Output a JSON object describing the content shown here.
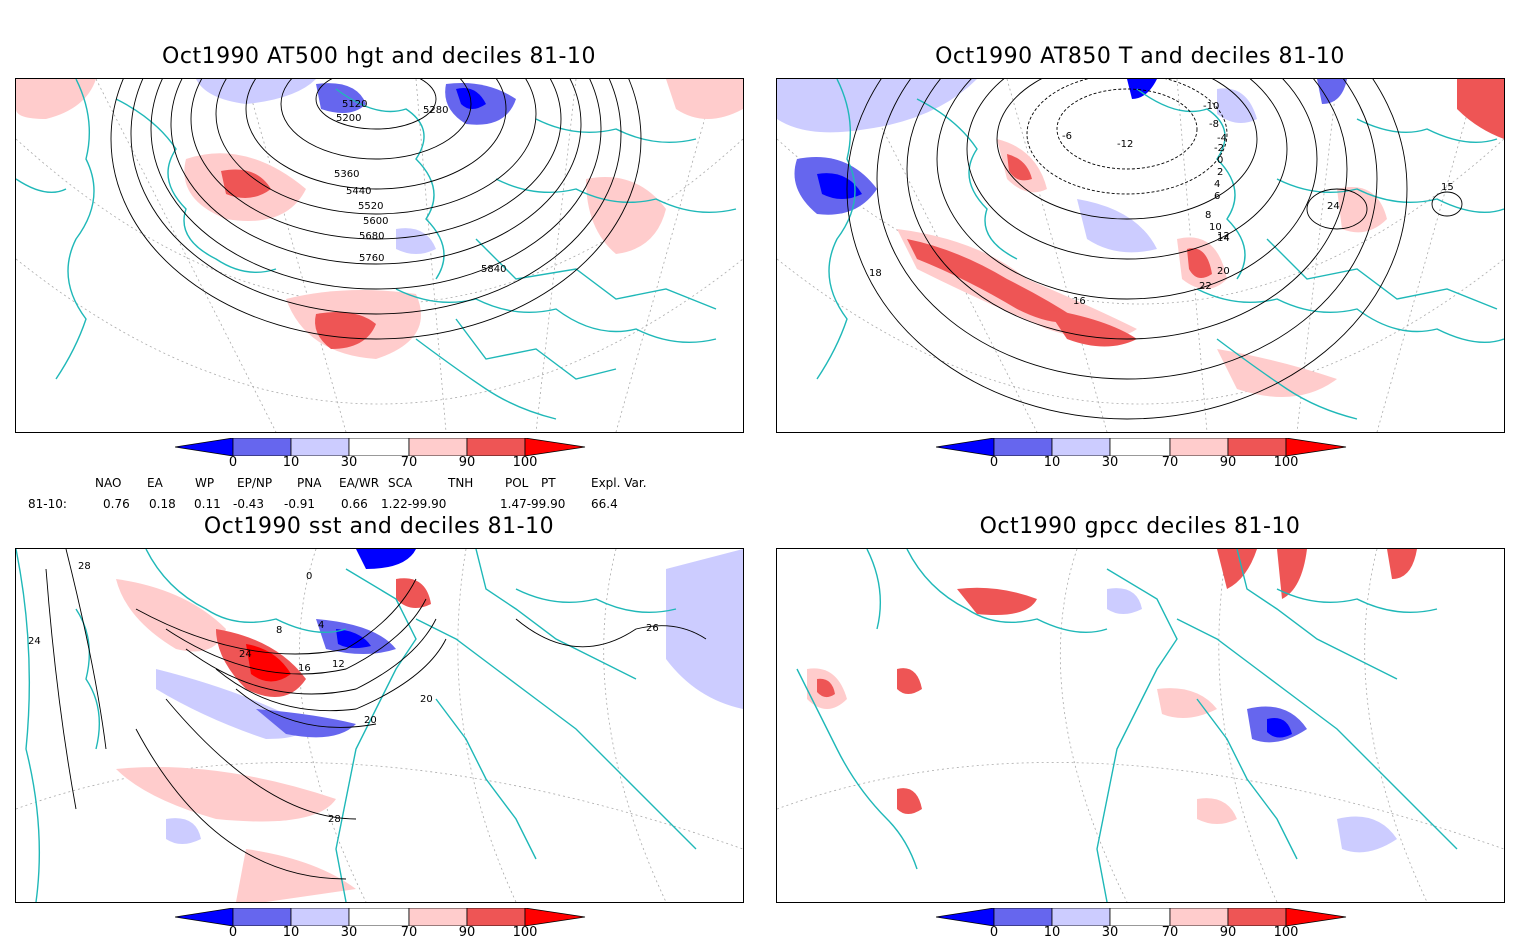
{
  "panels": [
    {
      "title": "Oct1990 AT500 hgt and deciles 81-10",
      "contour_labels": [
        "5120",
        "5200",
        "5280",
        "5360",
        "5440",
        "5520",
        "5600",
        "5680",
        "5760",
        "5840"
      ]
    },
    {
      "title": "Oct1990 AT850 T and deciles 81-10",
      "contour_labels": [
        "-12",
        "-10",
        "-8",
        "-6",
        "-4",
        "-2",
        "0",
        "2",
        "4",
        "6",
        "8",
        "10",
        "12",
        "14",
        "15",
        "16",
        "18",
        "20",
        "22",
        "24"
      ]
    },
    {
      "title": "Oct1990 sst and deciles 81-10",
      "contour_labels": [
        "28",
        "24",
        "0",
        "4",
        "8",
        "12",
        "16",
        "20",
        "24",
        "28",
        "20",
        "26"
      ]
    },
    {
      "title": "Oct1990 gpcc deciles 81-10",
      "contour_labels": []
    }
  ],
  "colorbar": {
    "ticks": [
      "0",
      "10",
      "30",
      "70",
      "90",
      "100"
    ],
    "colors": [
      "#0000ff",
      "#6666ee",
      "#ccccff",
      "#ffffff",
      "#ffcccc",
      "#ee5555",
      "#ff0000"
    ]
  },
  "indices": {
    "headers": [
      "NAO",
      "EA",
      "WP",
      "EP/NP",
      "PNA",
      "EA/WR",
      "SCA",
      "TNH",
      "POL",
      "PT",
      "Expl. Var."
    ],
    "row_label": "81-10:",
    "values": [
      "0.76",
      "0.18",
      "0.11",
      "-0.43",
      "-0.91",
      "0.66",
      "1.22-99.90",
      "1.47-99.90",
      "66.4"
    ]
  }
}
